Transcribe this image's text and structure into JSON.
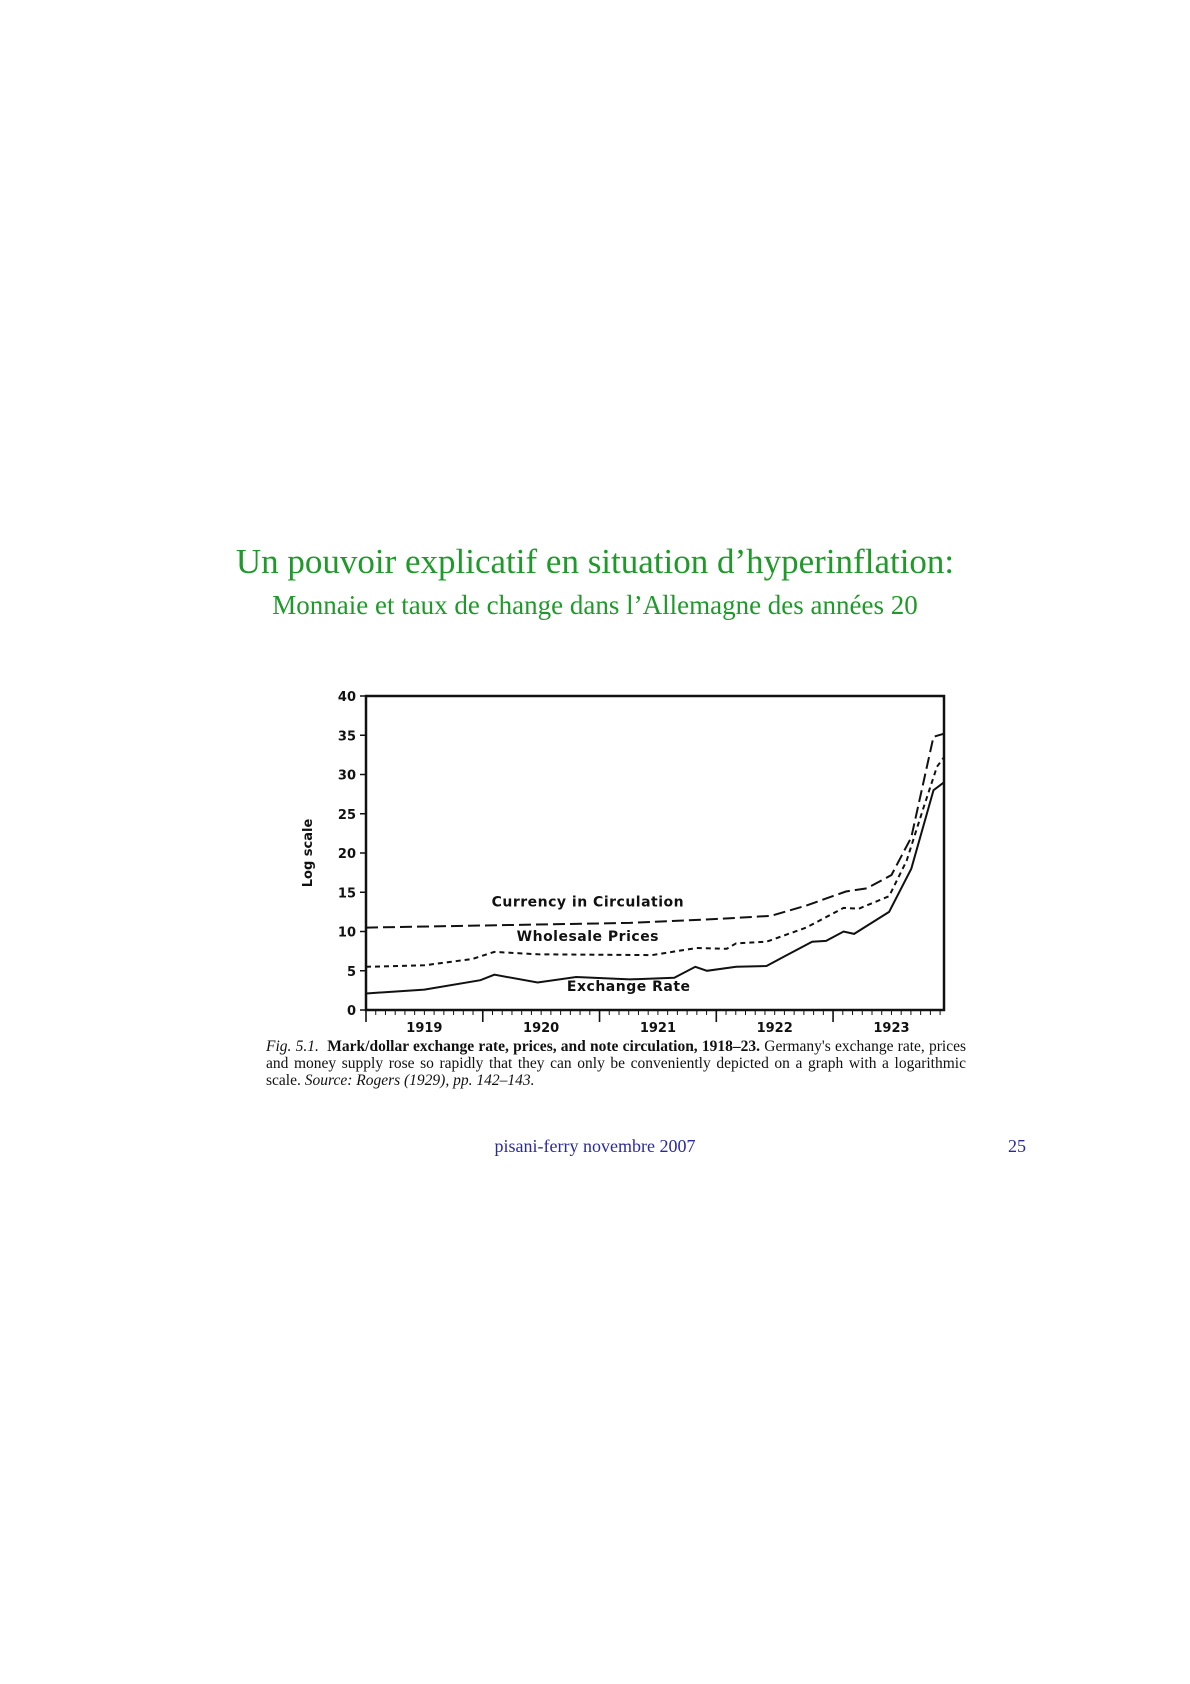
{
  "slide": {
    "title": "Un pouvoir explicatif en situation d’hyperinflation:",
    "subtitle": "Monnaie et taux de change dans l’Allemagne des années 20",
    "footer": "pisani-ferry novembre 2007",
    "page_number": "25",
    "colors": {
      "title": "#1f9a2a",
      "footer": "#2a2aa0"
    }
  },
  "caption": {
    "fig_label": "Fig. 5.1.",
    "bold_title": "Mark/dollar exchange rate, prices, and note circulation, 1918–23.",
    "body": "Germany's exchange rate, prices and money supply rose so rapidly that they can only be conveniently depicted on a graph with a logarithmic scale.",
    "source": "Source: Rogers (1929), pp. 142–143."
  },
  "chart_data": {
    "type": "line",
    "ylabel": "Log scale",
    "xlabel": "",
    "ylim": [
      0,
      40
    ],
    "yticks": [
      0,
      5,
      10,
      15,
      20,
      25,
      30,
      35,
      40
    ],
    "xlim": [
      1919,
      1923.95
    ],
    "xtick_labels": [
      "1919",
      "1920",
      "1921",
      "1922",
      "1923"
    ],
    "grid": false,
    "series": [
      {
        "name": "Currency in Circulation",
        "style": "long-dash",
        "x": [
          1919,
          1920.14,
          1921.26,
          1922.02,
          1922.47,
          1922.77,
          1923.11,
          1923.29,
          1923.5,
          1923.67,
          1923.86,
          1923.95
        ],
        "y": [
          10.5,
          10.8,
          11.1,
          11.6,
          12.0,
          13.3,
          15.1,
          15.5,
          17.2,
          22,
          34.8,
          35.2
        ]
      },
      {
        "name": "Wholesale Prices",
        "style": "short-dash",
        "x": [
          1919,
          1919.5,
          1919.91,
          1920.1,
          1920.47,
          1921.45,
          1921.83,
          1922.09,
          1922.17,
          1922.43,
          1922.77,
          1923.09,
          1923.22,
          1923.48,
          1923.63,
          1923.78,
          1923.89,
          1923.95
        ],
        "y": [
          5.5,
          5.7,
          6.5,
          7.4,
          7.1,
          7.0,
          7.9,
          7.8,
          8.5,
          8.7,
          10.5,
          13.0,
          12.9,
          14.5,
          19,
          26,
          31,
          32.2
        ]
      },
      {
        "name": "Exchange Rate",
        "style": "solid",
        "x": [
          1919,
          1919.5,
          1919.98,
          1920.1,
          1920.47,
          1920.8,
          1921.26,
          1921.64,
          1921.82,
          1921.92,
          1922.17,
          1922.43,
          1922.58,
          1922.82,
          1922.94,
          1923.09,
          1923.18,
          1923.48,
          1923.67,
          1923.86,
          1923.95
        ],
        "y": [
          2.1,
          2.6,
          3.8,
          4.5,
          3.5,
          4.2,
          3.9,
          4.1,
          5.5,
          5.0,
          5.5,
          5.6,
          6.8,
          8.7,
          8.8,
          10.0,
          9.7,
          12.5,
          18,
          28,
          29
        ]
      }
    ],
    "series_labels": [
      {
        "text": "Currency in Circulation",
        "x": 1920.9,
        "y": 13.2
      },
      {
        "text": "Wholesale Prices",
        "x": 1920.9,
        "y": 8.8
      },
      {
        "text": "Exchange Rate",
        "x": 1921.25,
        "y": 2.4
      }
    ]
  }
}
